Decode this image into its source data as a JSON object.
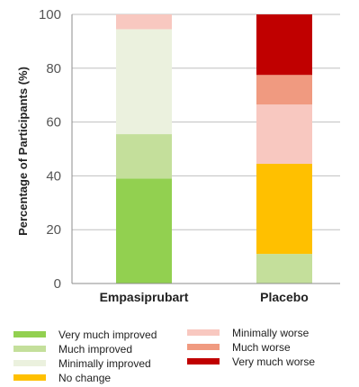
{
  "chart_data": {
    "type": "bar",
    "stacked": true,
    "ylabel": "Percentage of Participants (%)",
    "xlabel": "",
    "ylim": [
      0,
      100
    ],
    "yticks": [
      0,
      20,
      40,
      60,
      80,
      100
    ],
    "grid": "horizontal",
    "legend_position": "bottom",
    "categories": [
      "Empasiprubart",
      "Placebo"
    ],
    "series": [
      {
        "name": "Very much improved",
        "color": "#92d050",
        "values": [
          39,
          0
        ]
      },
      {
        "name": "Much improved",
        "color": "#c4df9b",
        "values": [
          16.5,
          11
        ]
      },
      {
        "name": "Minimally improved",
        "color": "#ebf1de",
        "values": [
          39,
          0
        ]
      },
      {
        "name": "No change",
        "color": "#ffc000",
        "values": [
          0,
          33.5
        ]
      },
      {
        "name": "Minimally worse",
        "color": "#f8c8c0",
        "values": [
          5.5,
          22
        ]
      },
      {
        "name": "Much worse",
        "color": "#f09a80",
        "values": [
          0,
          11
        ]
      },
      {
        "name": "Very much worse",
        "color": "#c00000",
        "values": [
          0,
          22.5
        ]
      }
    ]
  }
}
